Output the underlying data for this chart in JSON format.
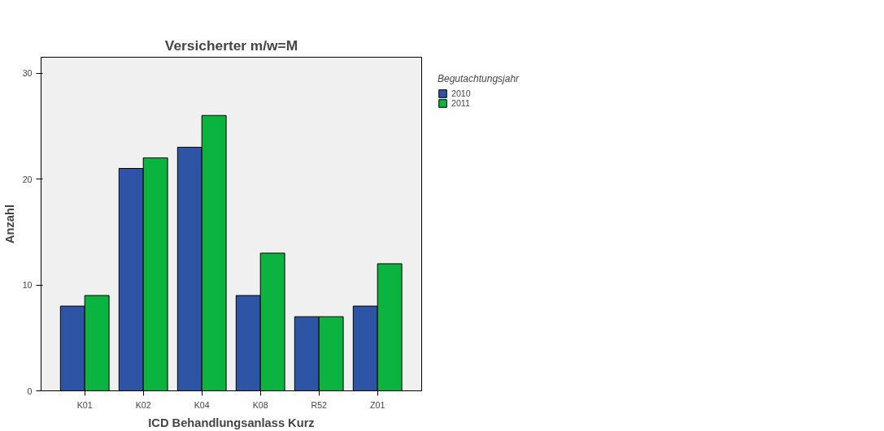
{
  "chart_data": {
    "type": "bar",
    "title": "Versicherter m/w=M",
    "xlabel": "ICD Behandlungsanlass Kurz",
    "ylabel": "Anzahl",
    "legend_title": "Begutachtungsjahr",
    "categories": [
      "K01",
      "K02",
      "K04",
      "K08",
      "R52",
      "Z01"
    ],
    "series": [
      {
        "name": "2010",
        "color": "#2e55a5",
        "values": [
          8,
          21,
          23,
          9,
          7,
          8
        ]
      },
      {
        "name": "2011",
        "color": "#0bb33f",
        "values": [
          9,
          22,
          26,
          13,
          7,
          12
        ]
      }
    ],
    "ylim": [
      0,
      31.5
    ],
    "yticks": [
      0,
      10,
      20,
      30
    ],
    "grid": false,
    "legend": "top right"
  }
}
